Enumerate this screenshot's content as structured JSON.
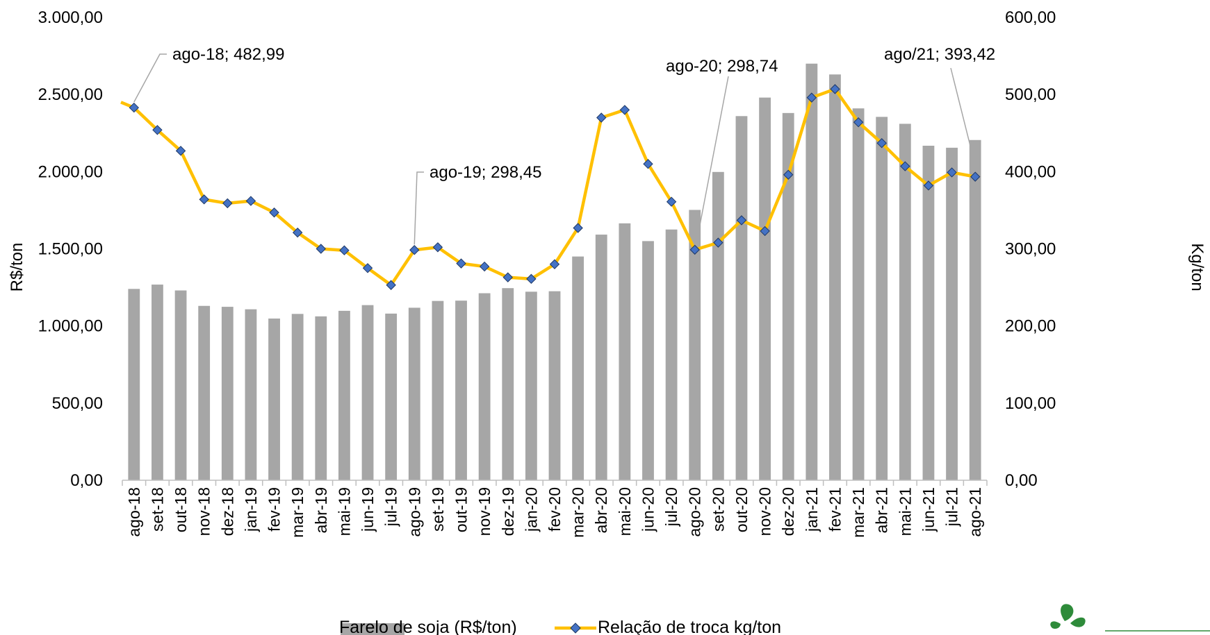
{
  "chart_data": {
    "type": "bar+line",
    "categories": [
      "ago-18",
      "set-18",
      "out-18",
      "nov-18",
      "dez-18",
      "jan-19",
      "fev-19",
      "mar-19",
      "abr-19",
      "mai-19",
      "jun-19",
      "jul-19",
      "ago-19",
      "set-19",
      "out-19",
      "nov-19",
      "dez-19",
      "jan-20",
      "fev-20",
      "mar-20",
      "abr-20",
      "mai-20",
      "jun-20",
      "jul-20",
      "ago-20",
      "set-20",
      "out-20",
      "nov-20",
      "dez-20",
      "jan-21",
      "fev-21",
      "mar-21",
      "abr-21",
      "mai-21",
      "jun-21",
      "jul-21",
      "ago-21"
    ],
    "series": [
      {
        "name": "Farelo de soja (R$/ton)",
        "kind": "bar",
        "axis": "left",
        "color": "#a6a6a6",
        "values": [
          1240,
          1268,
          1230,
          1130,
          1124,
          1108,
          1048,
          1078,
          1062,
          1098,
          1135,
          1080,
          1118,
          1162,
          1164,
          1212,
          1245,
          1222,
          1225,
          1450,
          1592,
          1665,
          1550,
          1625,
          1752,
          1998,
          2360,
          2480,
          2380,
          2700,
          2630,
          2410,
          2355,
          2310,
          2168,
          2155,
          2205
        ]
      },
      {
        "name": "Relação de troca kg/ton",
        "kind": "line",
        "axis": "right",
        "color": "#ffc000",
        "marker_color": "#4472c4",
        "values": [
          482.99,
          454,
          427,
          364,
          359,
          362,
          347,
          321,
          300,
          298,
          275,
          253,
          298.45,
          302,
          281,
          277,
          263,
          261,
          280,
          327,
          470,
          480,
          410,
          361,
          298.74,
          308,
          337,
          323,
          396,
          496,
          507,
          464,
          437,
          407,
          382,
          399,
          393.42
        ]
      }
    ],
    "line_start_value": 490,
    "ylabel_left": "R$/ton",
    "ylabel_right": "Kg/ton",
    "y_left_range": [
      0,
      3000
    ],
    "y_right_range": [
      0,
      600
    ],
    "y_left_ticks": [
      "0,00",
      "500,00",
      "1.000,00",
      "1.500,00",
      "2.000,00",
      "2.500,00",
      "3.000,00"
    ],
    "y_right_ticks": [
      "0,00",
      "100,00",
      "200,00",
      "300,00",
      "400,00",
      "500,00",
      "600,00"
    ],
    "annotations": [
      {
        "index": 0,
        "text": "ago-18; 482,99"
      },
      {
        "index": 12,
        "text": "ago-19; 298,45"
      },
      {
        "index": 24,
        "text": "ago-20; 298,74"
      },
      {
        "index": 36,
        "text": "ago/21; 393,42"
      }
    ],
    "legend_position": "bottom",
    "grid": false
  }
}
